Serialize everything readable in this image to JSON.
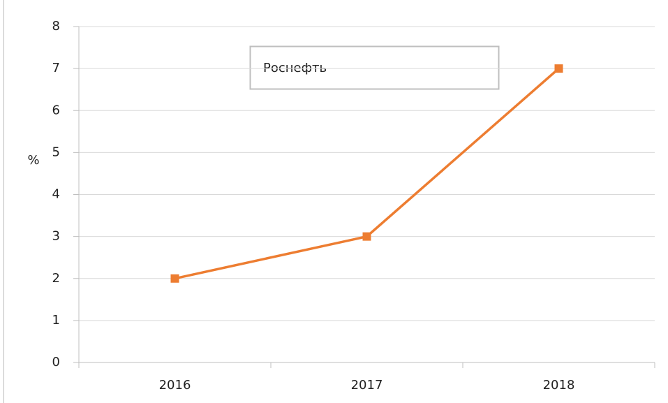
{
  "chart_data": {
    "type": "line",
    "y_label": "%",
    "categories": [
      "2016",
      "2017",
      "2018"
    ],
    "series": [
      {
        "name": "Роснефть",
        "color": "#ed7d31",
        "values": [
          2,
          3,
          7
        ]
      }
    ],
    "ylim": [
      0,
      8
    ],
    "yticks": [
      0,
      1,
      2,
      3,
      4,
      5,
      6,
      7,
      8
    ],
    "grid": true
  }
}
